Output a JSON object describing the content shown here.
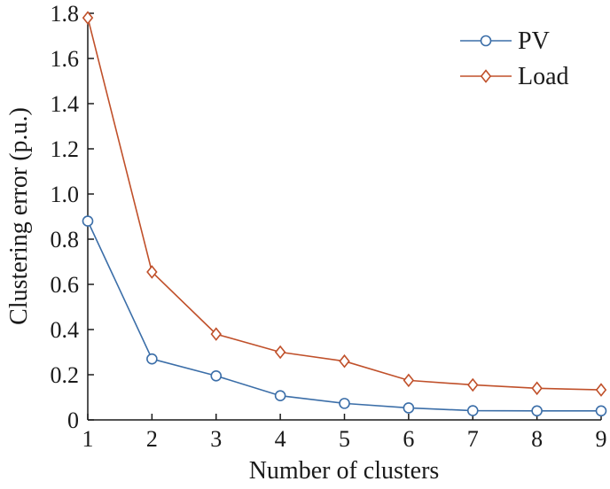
{
  "chart_data": {
    "type": "line",
    "xlabel": "Number of clusters",
    "ylabel": "Clustering error (p.u.)",
    "x": [
      1,
      2,
      3,
      4,
      5,
      6,
      7,
      8,
      9
    ],
    "xlim": [
      1,
      9
    ],
    "ylim": [
      0,
      1.8
    ],
    "xticks": [
      "1",
      "2",
      "3",
      "4",
      "5",
      "6",
      "7",
      "8",
      "9"
    ],
    "yticks": [
      "0",
      "0.2",
      "0.4",
      "0.6",
      "0.8",
      "1.0",
      "1.2",
      "1.4",
      "1.6",
      "1.8"
    ],
    "grid": false,
    "legend_position": "top-right",
    "series": [
      {
        "name": "PV",
        "marker": "circle",
        "color": "#3b6ea8",
        "values": [
          0.88,
          0.27,
          0.195,
          0.107,
          0.073,
          0.053,
          0.041,
          0.04,
          0.04
        ]
      },
      {
        "name": "Load",
        "marker": "diamond",
        "color": "#c0502a",
        "values": [
          1.78,
          0.655,
          0.38,
          0.3,
          0.26,
          0.175,
          0.155,
          0.14,
          0.133
        ]
      }
    ]
  }
}
